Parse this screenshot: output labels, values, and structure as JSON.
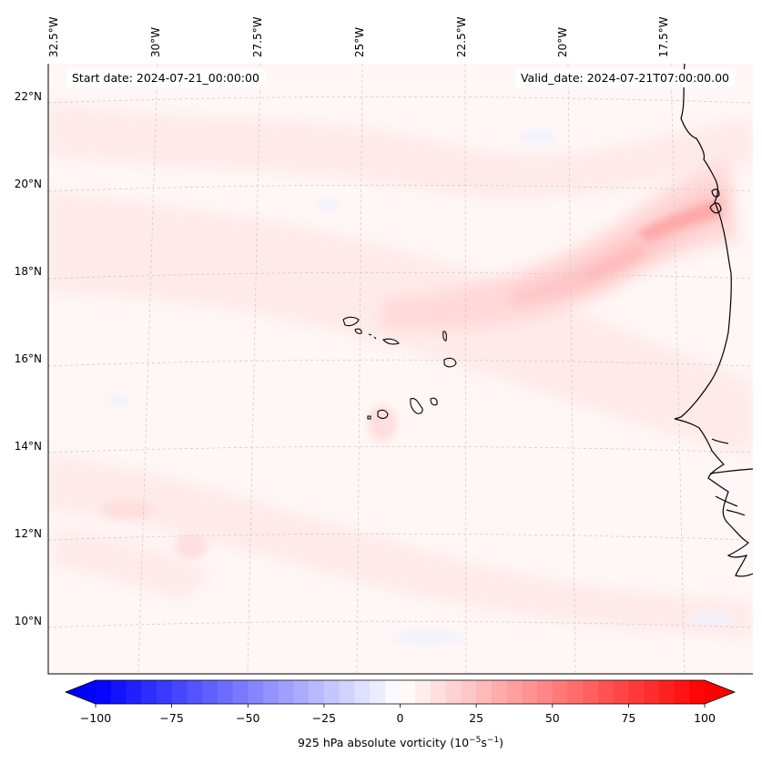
{
  "map": {
    "lon_labels": [
      "32.5°W",
      "30°W",
      "27.5°W",
      "25°W",
      "22.5°W",
      "20°W",
      "17.5°W"
    ],
    "lat_labels": [
      "22°N",
      "20°N",
      "18°N",
      "16°N",
      "14°N",
      "12°N",
      "10°N"
    ],
    "start_date": "Start date: 2024-07-21_00:00:00",
    "valid_date": "Valid_date: 2024-07-21T07:00:00.00",
    "coastline_color": "#000000",
    "gridlines": "dashed",
    "field_colormap": "bwr"
  },
  "colorbar": {
    "ticks": [
      "−100",
      "−75",
      "−50",
      "−25",
      "0",
      "25",
      "50",
      "75",
      "100"
    ],
    "label": "925 hPa absolute vorticity (10",
    "label_exp1": "−5",
    "label_mid": "s",
    "label_exp2": "−1",
    "label_end": ")",
    "min_color": "#0000ff",
    "mid_color": "#ffffff",
    "max_color": "#ff0000"
  }
}
